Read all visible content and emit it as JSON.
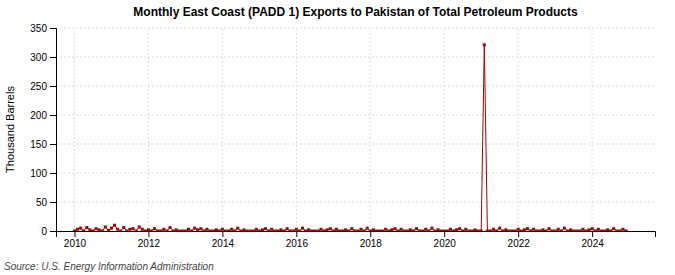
{
  "chart_data": {
    "type": "line",
    "title": "Monthly East Coast (PADD 1) Exports to Pakistan of Total Petroleum Products",
    "y_label": "Thousand Barrels",
    "source": "Source: U.S. Energy Information Administration",
    "color": "#aa0000",
    "marker": "square",
    "grid": true,
    "xlim": [
      2009.5,
      2025.7
    ],
    "ylim": [
      0,
      350
    ],
    "xticks": [
      2010,
      2012,
      2014,
      2016,
      2018,
      2020,
      2022,
      2024
    ],
    "yticks": [
      0,
      50,
      100,
      150,
      200,
      250,
      300,
      350
    ],
    "x": [
      2010.0,
      2010.083,
      2010.167,
      2010.25,
      2010.333,
      2010.417,
      2010.5,
      2010.583,
      2010.667,
      2010.75,
      2010.833,
      2010.917,
      2011.0,
      2011.083,
      2011.167,
      2011.25,
      2011.333,
      2011.417,
      2011.5,
      2011.583,
      2011.667,
      2011.75,
      2011.833,
      2011.917,
      2012.0,
      2012.083,
      2012.167,
      2012.25,
      2012.333,
      2012.417,
      2012.5,
      2012.583,
      2012.667,
      2012.75,
      2012.833,
      2012.917,
      2013.0,
      2013.083,
      2013.167,
      2013.25,
      2013.333,
      2013.417,
      2013.5,
      2013.583,
      2013.667,
      2013.75,
      2013.833,
      2013.917,
      2014.0,
      2014.083,
      2014.167,
      2014.25,
      2014.333,
      2014.417,
      2014.5,
      2014.583,
      2014.667,
      2014.75,
      2014.833,
      2014.917,
      2015.0,
      2015.083,
      2015.167,
      2015.25,
      2015.333,
      2015.417,
      2015.5,
      2015.583,
      2015.667,
      2015.75,
      2015.833,
      2015.917,
      2016.0,
      2016.083,
      2016.167,
      2016.25,
      2016.333,
      2016.417,
      2016.5,
      2016.583,
      2016.667,
      2016.75,
      2016.833,
      2016.917,
      2017.0,
      2017.083,
      2017.167,
      2017.25,
      2017.333,
      2017.417,
      2017.5,
      2017.583,
      2017.667,
      2017.75,
      2017.833,
      2017.917,
      2018.0,
      2018.083,
      2018.167,
      2018.25,
      2018.333,
      2018.417,
      2018.5,
      2018.583,
      2018.667,
      2018.75,
      2018.833,
      2018.917,
      2019.0,
      2019.083,
      2019.167,
      2019.25,
      2019.333,
      2019.417,
      2019.5,
      2019.583,
      2019.667,
      2019.75,
      2019.833,
      2019.917,
      2020.0,
      2020.083,
      2020.167,
      2020.25,
      2020.333,
      2020.417,
      2020.5,
      2020.583,
      2020.667,
      2020.75,
      2020.833,
      2020.917,
      2021.0,
      2021.083,
      2021.167,
      2021.25,
      2021.333,
      2021.417,
      2021.5,
      2021.583,
      2021.667,
      2021.75,
      2021.833,
      2021.917,
      2022.0,
      2022.083,
      2022.167,
      2022.25,
      2022.333,
      2022.417,
      2022.5,
      2022.583,
      2022.667,
      2022.75,
      2022.833,
      2022.917,
      2023.0,
      2023.083,
      2023.167,
      2023.25,
      2023.333,
      2023.417,
      2023.5,
      2023.583,
      2023.667,
      2023.75,
      2023.833,
      2023.917,
      2024.0,
      2024.083,
      2024.167,
      2024.25,
      2024.333,
      2024.417,
      2024.5,
      2024.583,
      2024.667,
      2024.75,
      2024.833,
      2024.917
    ],
    "values": [
      0,
      3,
      5,
      0,
      6,
      2,
      0,
      4,
      2,
      0,
      7,
      1,
      5,
      10,
      3,
      0,
      6,
      0,
      3,
      4,
      0,
      7,
      3,
      0,
      2,
      0,
      4,
      0,
      0,
      3,
      0,
      6,
      0,
      2,
      0,
      0,
      0,
      3,
      0,
      5,
      2,
      4,
      0,
      3,
      0,
      0,
      2,
      0,
      3,
      0,
      0,
      3,
      0,
      5,
      0,
      2,
      0,
      0,
      0,
      3,
      0,
      2,
      4,
      0,
      3,
      0,
      0,
      2,
      0,
      4,
      0,
      0,
      3,
      0,
      5,
      0,
      2,
      0,
      0,
      0,
      3,
      0,
      2,
      4,
      0,
      3,
      0,
      0,
      2,
      0,
      4,
      0,
      0,
      3,
      0,
      5,
      0,
      2,
      0,
      0,
      0,
      3,
      0,
      2,
      4,
      0,
      3,
      0,
      0,
      2,
      0,
      4,
      0,
      0,
      3,
      0,
      5,
      0,
      2,
      0,
      0,
      0,
      3,
      0,
      2,
      4,
      0,
      3,
      0,
      0,
      2,
      0,
      0,
      321,
      0,
      0,
      3,
      0,
      5,
      0,
      2,
      0,
      0,
      0,
      3,
      0,
      2,
      4,
      0,
      3,
      0,
      0,
      2,
      0,
      4,
      0,
      0,
      3,
      0,
      5,
      0,
      2,
      0,
      0,
      0,
      3,
      0,
      2,
      4,
      0,
      3,
      0,
      0,
      2,
      0,
      4,
      0,
      0,
      3,
      0
    ]
  }
}
